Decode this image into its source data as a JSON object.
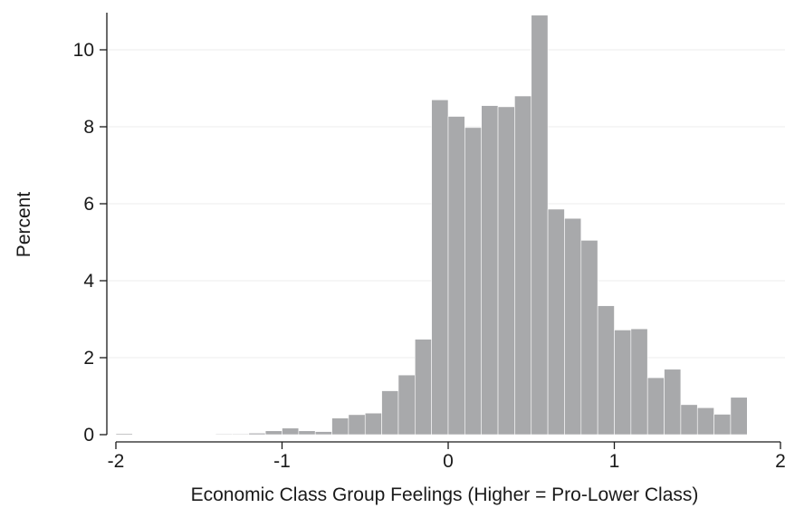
{
  "chart_data": {
    "type": "bar",
    "subtype": "histogram",
    "xlabel": "Economic Class Group Feelings (Higher = Pro-Lower Class)",
    "ylabel": "Percent",
    "xlim": [
      -2.05,
      2.0
    ],
    "ylim": [
      0,
      10.9
    ],
    "x_ticks": [
      "-2",
      "-1",
      "0",
      "1",
      "2"
    ],
    "y_ticks": [
      "0",
      "2",
      "4",
      "6",
      "8",
      "10"
    ],
    "grid": true,
    "legend": "none",
    "bar_color": "#a8a9ab",
    "bin_width": 0.1,
    "bins": [
      {
        "x_start": -2.0,
        "value": 0.03
      },
      {
        "x_start": -1.9,
        "value": 0.0
      },
      {
        "x_start": -1.8,
        "value": 0.0
      },
      {
        "x_start": -1.7,
        "value": 0.0
      },
      {
        "x_start": -1.6,
        "value": 0.0
      },
      {
        "x_start": -1.5,
        "value": 0.0
      },
      {
        "x_start": -1.4,
        "value": 0.02
      },
      {
        "x_start": -1.3,
        "value": 0.02
      },
      {
        "x_start": -1.2,
        "value": 0.04
      },
      {
        "x_start": -1.1,
        "value": 0.1
      },
      {
        "x_start": -1.0,
        "value": 0.17
      },
      {
        "x_start": -0.9,
        "value": 0.1
      },
      {
        "x_start": -0.8,
        "value": 0.08
      },
      {
        "x_start": -0.7,
        "value": 0.43
      },
      {
        "x_start": -0.6,
        "value": 0.52
      },
      {
        "x_start": -0.5,
        "value": 0.56
      },
      {
        "x_start": -0.4,
        "value": 1.14
      },
      {
        "x_start": -0.3,
        "value": 1.55
      },
      {
        "x_start": -0.2,
        "value": 2.48
      },
      {
        "x_start": -0.1,
        "value": 8.7
      },
      {
        "x_start": 0.0,
        "value": 8.27
      },
      {
        "x_start": 0.1,
        "value": 7.98
      },
      {
        "x_start": 0.2,
        "value": 8.55
      },
      {
        "x_start": 0.3,
        "value": 8.52
      },
      {
        "x_start": 0.4,
        "value": 8.8
      },
      {
        "x_start": 0.5,
        "value": 10.9
      },
      {
        "x_start": 0.6,
        "value": 5.86
      },
      {
        "x_start": 0.7,
        "value": 5.62
      },
      {
        "x_start": 0.8,
        "value": 5.05
      },
      {
        "x_start": 0.9,
        "value": 3.35
      },
      {
        "x_start": 1.0,
        "value": 2.72
      },
      {
        "x_start": 1.1,
        "value": 2.75
      },
      {
        "x_start": 1.2,
        "value": 1.48
      },
      {
        "x_start": 1.3,
        "value": 1.7
      },
      {
        "x_start": 1.4,
        "value": 0.78
      },
      {
        "x_start": 1.5,
        "value": 0.7
      },
      {
        "x_start": 1.6,
        "value": 0.53
      },
      {
        "x_start": 1.7,
        "value": 0.97
      }
    ]
  }
}
